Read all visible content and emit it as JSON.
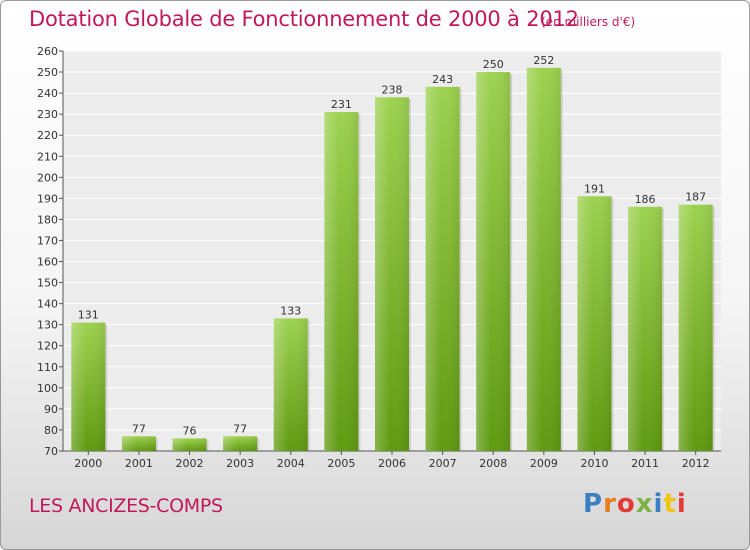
{
  "header": {
    "title": "Dotation Globale de Fonctionnement de 2000 à 2012",
    "unit": "(en milliers d'€)"
  },
  "footer": {
    "commune": "LES ANCIZES-COMPS",
    "logo_text": "Proxiti"
  },
  "colors": {
    "title": "#c2185b",
    "bar_top": "#9dd14f",
    "bar_bottom": "#5f9a10",
    "logo": [
      "#3a7fc1",
      "#e67e22",
      "#e53935",
      "#7cb342",
      "#3a7fc1",
      "#f1c40f",
      "#e53935"
    ]
  },
  "chart_data": {
    "type": "bar",
    "categories": [
      "2000",
      "2001",
      "2002",
      "2003",
      "2004",
      "2005",
      "2006",
      "2007",
      "2008",
      "2009",
      "2010",
      "2011",
      "2012"
    ],
    "values": [
      131,
      77,
      76,
      77,
      133,
      231,
      238,
      243,
      250,
      252,
      191,
      186,
      187
    ],
    "title": "Dotation Globale de Fonctionnement de 2000 à 2012",
    "ylim": [
      70,
      260
    ],
    "yticks": [
      70,
      80,
      90,
      100,
      110,
      120,
      130,
      140,
      150,
      160,
      170,
      180,
      190,
      200,
      210,
      220,
      230,
      240,
      250,
      260
    ],
    "grid": true,
    "legend": "none"
  }
}
